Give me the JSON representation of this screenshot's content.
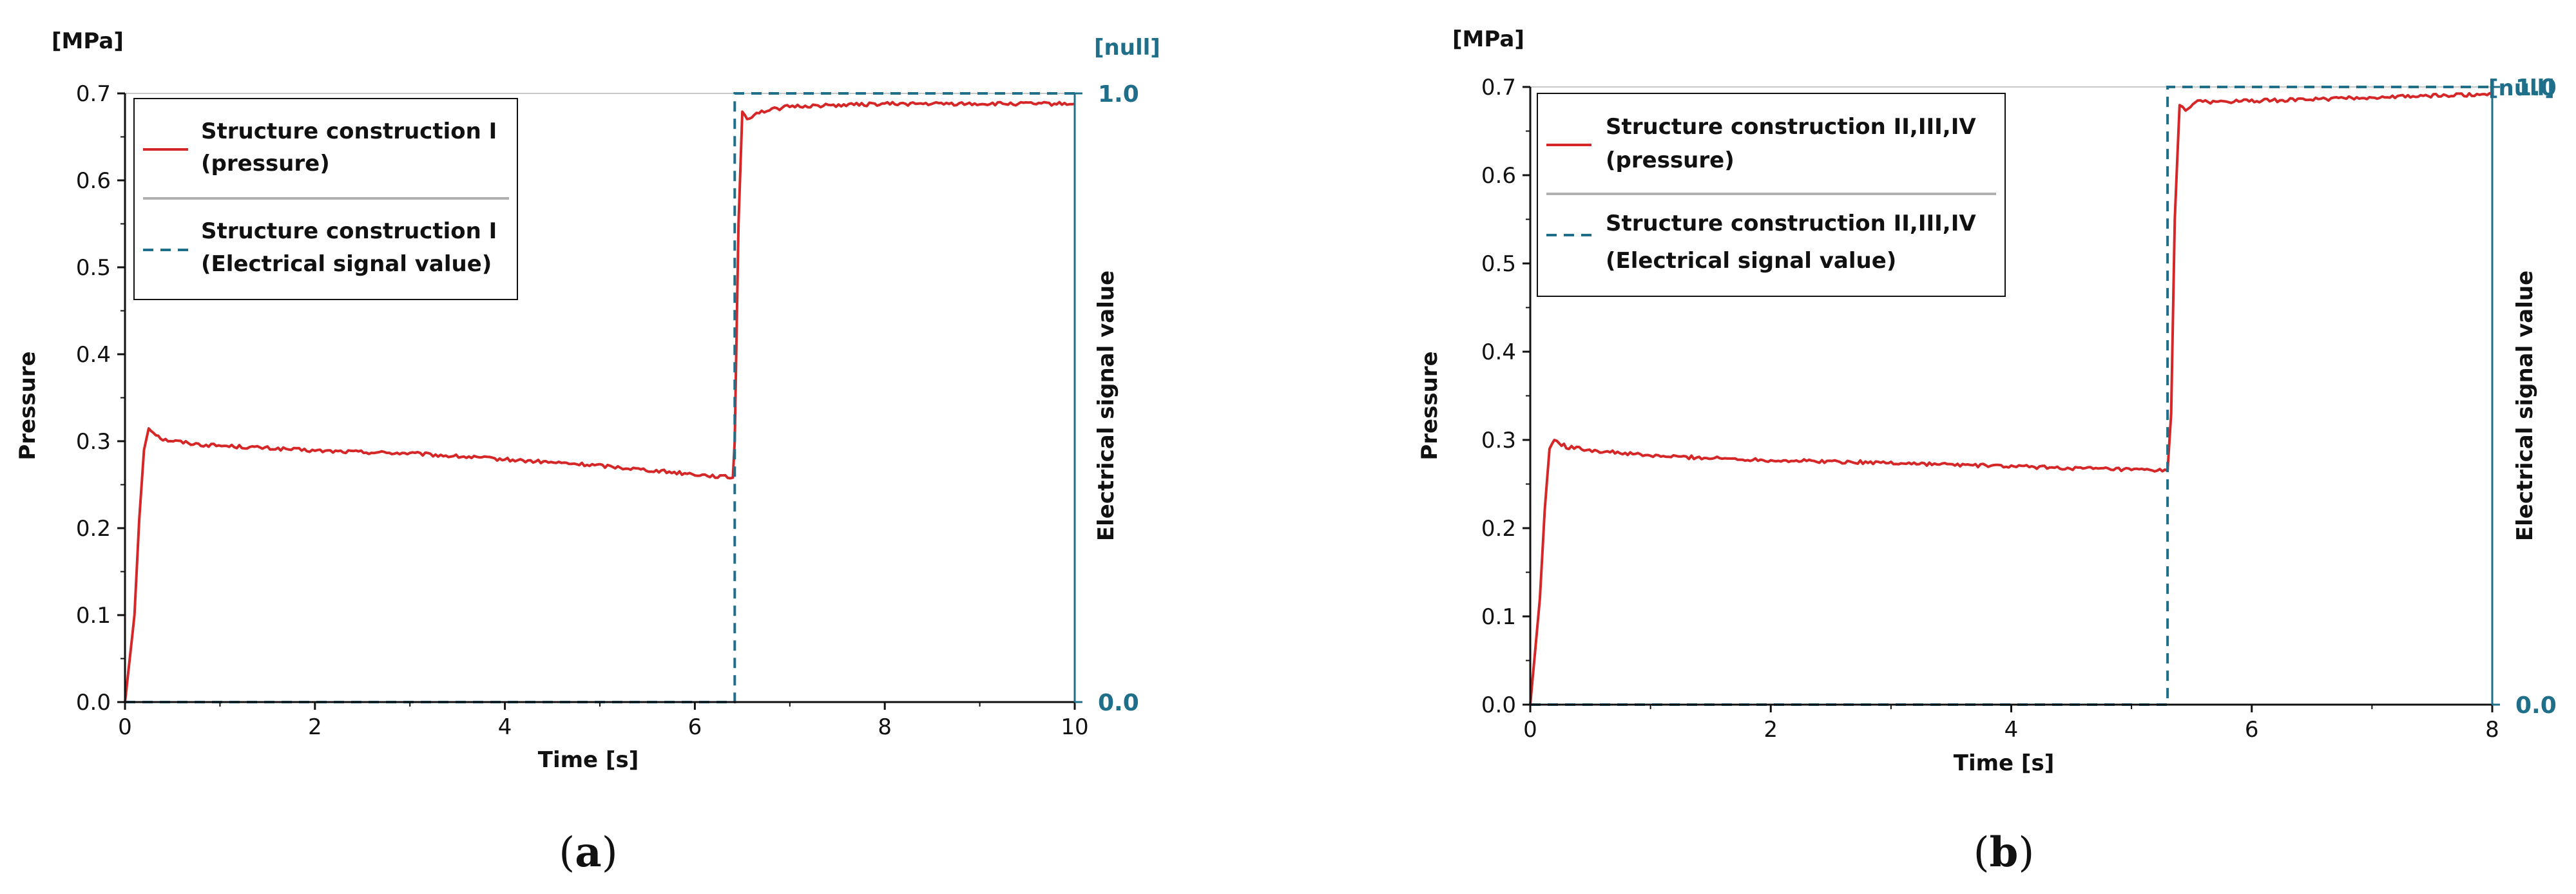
{
  "colors": {
    "pressure": "#d62728",
    "signal": "#1f6f8b",
    "axis": "#111111",
    "legend_separator": "#b0b0b0",
    "frame_top": "#c8c8c8"
  },
  "chart_data": [
    {
      "type": "line",
      "panel_label": "a",
      "xlabel": "Time [s]",
      "ylabel": "Pressure",
      "y_unit": "[MPa]",
      "y2label": "Electrical signal value",
      "y2_unit": "[null]",
      "xlim": [
        0,
        10
      ],
      "ylim": [
        0,
        0.7
      ],
      "y2lim": [
        0,
        1
      ],
      "x_ticks": [
        "0",
        "2",
        "4",
        "6",
        "8",
        "10"
      ],
      "y_ticks": [
        "0.0",
        "0.1",
        "0.2",
        "0.3",
        "0.4",
        "0.5",
        "0.6",
        "0.7"
      ],
      "y2_ticks": [
        "0.0",
        "1.0"
      ],
      "legend_position": "top-left",
      "series": [
        {
          "name": "Structure construction I (pressure)",
          "legend_lines": [
            "Structure construction I",
            "(pressure)"
          ],
          "axis": "left",
          "style": "solid",
          "x": [
            0,
            0.1,
            0.15,
            0.2,
            0.25,
            0.4,
            0.8,
            1.5,
            2,
            3,
            4,
            5,
            6,
            6.4,
            6.42,
            6.46,
            6.5,
            6.55,
            6.65,
            7,
            8,
            9,
            10
          ],
          "y": [
            0,
            0.1,
            0.21,
            0.29,
            0.315,
            0.302,
            0.296,
            0.292,
            0.289,
            0.286,
            0.279,
            0.272,
            0.262,
            0.258,
            0.3,
            0.55,
            0.68,
            0.67,
            0.678,
            0.685,
            0.688,
            0.688,
            0.688
          ]
        },
        {
          "name": "Structure construction I (Electrical signal value)",
          "legend_lines": [
            "Structure construction I",
            "(Electrical signal value)"
          ],
          "axis": "right",
          "style": "dashed",
          "x": [
            0,
            6.42,
            6.42,
            10
          ],
          "y": [
            0,
            0,
            1,
            1
          ]
        }
      ]
    },
    {
      "type": "line",
      "panel_label": "b",
      "xlabel": "Time [s]",
      "ylabel": "Pressure",
      "y_unit": "[MPa]",
      "y2label": "Electrical signal value",
      "y2_unit": "[null]",
      "xlim": [
        0,
        8
      ],
      "ylim": [
        0,
        0.7
      ],
      "y2lim": [
        0,
        1
      ],
      "x_ticks": [
        "0",
        "2",
        "4",
        "6",
        "8"
      ],
      "y_ticks": [
        "0.0",
        "0.1",
        "0.2",
        "0.3",
        "0.4",
        "0.5",
        "0.6",
        "0.7"
      ],
      "y2_ticks": [
        "0.0",
        "1.0"
      ],
      "legend_position": "top-left",
      "series": [
        {
          "name": "Structure construction II,III,IV (pressure)",
          "legend_lines": [
            "Structure construction II,III,IV",
            "(pressure)"
          ],
          "axis": "left",
          "style": "solid",
          "x": [
            0,
            0.08,
            0.12,
            0.16,
            0.2,
            0.3,
            0.6,
            1,
            2,
            3,
            4,
            5,
            5.3,
            5.33,
            5.36,
            5.4,
            5.45,
            5.55,
            6,
            7,
            8
          ],
          "y": [
            0,
            0.12,
            0.22,
            0.29,
            0.3,
            0.292,
            0.287,
            0.282,
            0.277,
            0.274,
            0.27,
            0.266,
            0.265,
            0.33,
            0.55,
            0.68,
            0.675,
            0.683,
            0.684,
            0.688,
            0.692
          ]
        },
        {
          "name": "Structure construction II,III,IV (Electrical signal value)",
          "legend_lines": [
            "Structure construction II,III,IV",
            "(Electrical signal value)"
          ],
          "axis": "right",
          "style": "dashed",
          "x": [
            0,
            5.3,
            5.3,
            8
          ],
          "y": [
            0,
            0,
            1,
            1
          ]
        }
      ]
    }
  ]
}
